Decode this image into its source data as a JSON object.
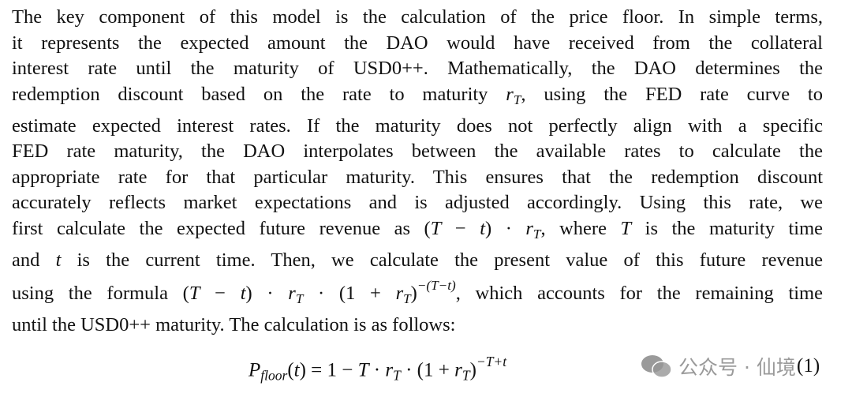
{
  "paragraph": {
    "lines": [
      "The key component of this model is the calculation of the price floor. In simple terms,",
      "it represents the expected amount the DAO would have received from the collateral",
      "interest rate until the maturity of USD0++. Mathematically, the DAO determines the",
      [
        "redemption discount based on the rate to maturity ",
        "r",
        "T",
        ", using the FED rate curve to"
      ],
      "estimate expected interest rates. If the maturity does not perfectly align with a specific",
      "FED rate maturity, the DAO interpolates between the available rates to calculate the",
      "appropriate rate for that particular maturity. This ensures that the redemption discount",
      "accurately reflects market expectations and is adjusted accordingly. Using this rate, we",
      [
        "first calculate the expected future revenue as (",
        "T",
        " − ",
        "t",
        ") · ",
        "r",
        "T",
        ", where ",
        "T",
        " is the maturity time"
      ],
      [
        "and ",
        "t",
        " is the current time. Then, we calculate the present value of this future revenue"
      ],
      [
        "using the formula (",
        "T",
        " − ",
        "t",
        ") · ",
        "r",
        "T",
        " · (1 + ",
        "r",
        "T",
        ")",
        "−(T−t)",
        ", which accounts for the remaining time"
      ],
      "until the USD0++ maturity. The calculation is as follows:"
    ]
  },
  "equation": {
    "parts": [
      "P",
      "floor",
      "(",
      "t",
      ") = 1 − ",
      "T",
      " · ",
      "r",
      "T",
      " · (1 + ",
      "r",
      "T",
      ")",
      "−T+t"
    ],
    "number": "(1)"
  },
  "watermark": "公众号 · 仙境"
}
